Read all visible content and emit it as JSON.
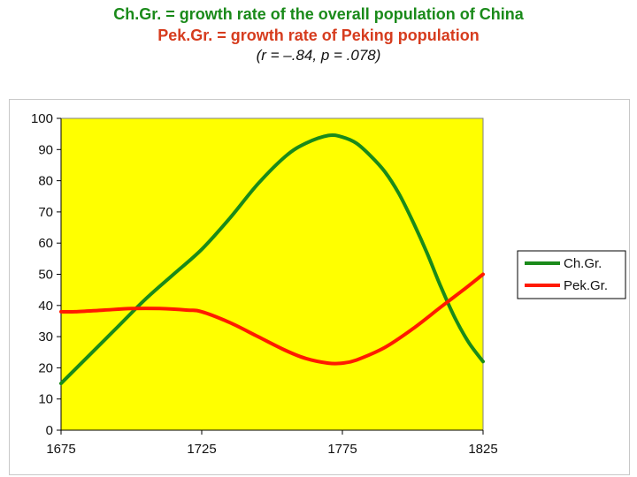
{
  "header": {
    "title_line1": "Ch.Gr. = growth rate of the overall population of China",
    "title_line2": "Pek.Gr. = growth rate of Peking population",
    "subtitle": "(r = –.84, p = .078)"
  },
  "colors": {
    "plot_bg": "#ffff00",
    "green": "#1a8a1a",
    "red": "#ff1a00",
    "title_green": "#1a8a1a",
    "title_red": "#d63c1e"
  },
  "chart_data": {
    "type": "line",
    "title": "Ch.Gr. = growth rate of the overall population of China / Pek.Gr. = growth rate of Peking population",
    "xlabel": "",
    "ylabel": "",
    "xlim": [
      1675,
      1825
    ],
    "ylim": [
      0,
      100
    ],
    "x_ticks": [
      "1675",
      "1725",
      "1775",
      "1825"
    ],
    "y_ticks": [
      "0",
      "10",
      "20",
      "30",
      "40",
      "50",
      "60",
      "70",
      "80",
      "90",
      "100"
    ],
    "x_tick_values": [
      1675,
      1725,
      1775,
      1825
    ],
    "y_tick_values": [
      0,
      10,
      20,
      30,
      40,
      50,
      60,
      70,
      80,
      90,
      100
    ],
    "grid": false,
    "legend": "right",
    "series": [
      {
        "name": "Ch.Gr.",
        "color": "#1a8a1a",
        "x": [
          1675,
          1685,
          1695,
          1705,
          1715,
          1725,
          1735,
          1745,
          1755,
          1762,
          1770,
          1775,
          1780,
          1785,
          1790,
          1795,
          1800,
          1805,
          1810,
          1815,
          1820,
          1825
        ],
        "values": [
          15,
          24,
          33,
          42,
          50,
          58,
          68,
          79,
          88,
          92,
          94.5,
          94,
          92,
          88,
          83,
          76,
          67,
          57,
          46,
          36,
          28,
          22
        ]
      },
      {
        "name": "Pek.Gr.",
        "color": "#ff1a00",
        "x": [
          1675,
          1680,
          1690,
          1700,
          1710,
          1720,
          1725,
          1735,
          1745,
          1755,
          1762,
          1770,
          1775,
          1780,
          1790,
          1800,
          1810,
          1818,
          1825
        ],
        "values": [
          38,
          38,
          38.5,
          39,
          39,
          38.5,
          38,
          34.5,
          30,
          25.5,
          23,
          21.5,
          21.5,
          22.5,
          26.5,
          32.5,
          39.5,
          45,
          50
        ]
      }
    ]
  }
}
